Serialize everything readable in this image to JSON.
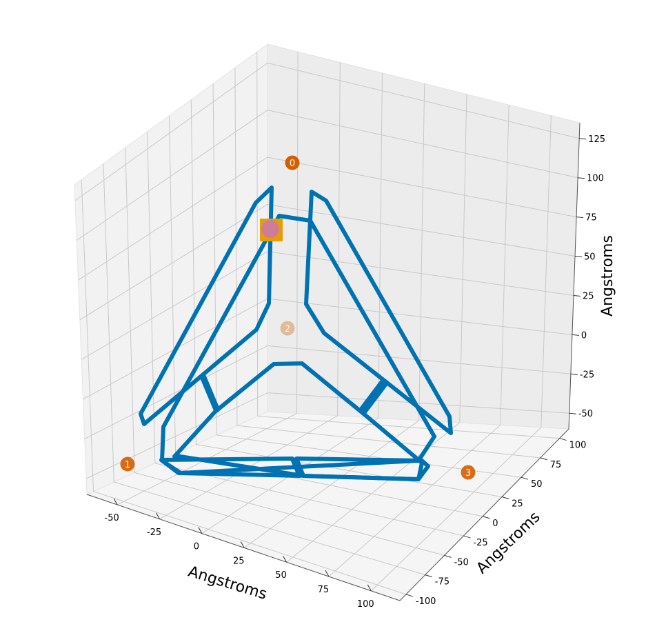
{
  "chart_data": {
    "type": "scatter",
    "projection": "3d",
    "xlabel": "Angstroms",
    "ylabel": "Angstroms",
    "zlabel": "Angstroms",
    "x_ticks": [
      -50,
      -25,
      0,
      25,
      50,
      75,
      100
    ],
    "y_ticks": [
      -100,
      -75,
      -50,
      -25,
      0,
      25,
      50,
      75,
      100
    ],
    "z_ticks": [
      -50,
      -25,
      0,
      25,
      50,
      75,
      100,
      125
    ],
    "grid": true,
    "colors": {
      "frame": "#0072b2",
      "vertex_marker": "#d55e00",
      "anchor_square": "#e69f00",
      "anchor_circle": "#cc79a7",
      "pane_left": "#f2f2f2",
      "pane_back": "#ececec",
      "pane_floor": "#f5f5f5",
      "grid": "#c8c8c8"
    },
    "vertex_markers": [
      {
        "label": "0",
        "opacity": 1.0
      },
      {
        "label": "1",
        "opacity": 0.9
      },
      {
        "label": "2",
        "opacity": 0.35
      },
      {
        "label": "3",
        "opacity": 0.9
      }
    ],
    "series": [
      {
        "type": "line3d",
        "color": "#0072b2",
        "description_points": "tetrahedral wireframe frame edges"
      }
    ]
  }
}
